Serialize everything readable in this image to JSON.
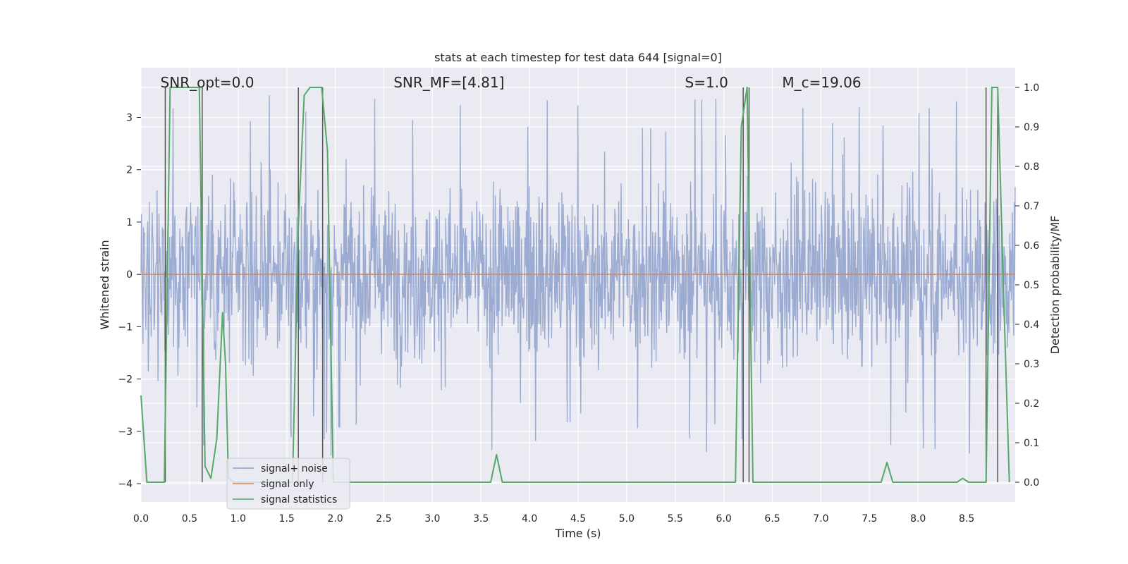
{
  "chart_data": {
    "type": "line",
    "title": "stats at each timestep for test data 644 [signal=0]",
    "xlabel": "Time (s)",
    "ylabel": "Whitened strain",
    "ylabel_right": "Detection probability/MF",
    "xlim": [
      0.0,
      9.0
    ],
    "ylim": [
      -4.35,
      3.95
    ],
    "ylim_right": [
      -0.05,
      1.05
    ],
    "x_ticks": [
      0.0,
      0.5,
      1.0,
      1.5,
      2.0,
      2.5,
      3.0,
      3.5,
      4.0,
      4.5,
      5.0,
      5.5,
      6.0,
      6.5,
      7.0,
      7.5,
      8.0,
      8.5
    ],
    "x_tick_labels": [
      "0.0",
      "0.5",
      "1.0",
      "1.5",
      "2.0",
      "2.5",
      "3.0",
      "3.5",
      "4.0",
      "4.5",
      "5.0",
      "5.5",
      "6.0",
      "6.5",
      "7.0",
      "7.5",
      "8.0",
      "8.5"
    ],
    "y_ticks": [
      -4,
      -3,
      -2,
      -1,
      0,
      1,
      2,
      3
    ],
    "y_tick_labels": [
      "−4",
      "−3",
      "−2",
      "−1",
      "0",
      "1",
      "2",
      "3"
    ],
    "y_right_ticks": [
      0.0,
      0.1,
      0.2,
      0.3,
      0.4,
      0.5,
      0.6,
      0.7,
      0.8,
      0.9,
      1.0
    ],
    "y_right_tick_labels": [
      "0.0",
      "0.1",
      "0.2",
      "0.3",
      "0.4",
      "0.5",
      "0.6",
      "0.7",
      "0.8",
      "0.9",
      "1.0"
    ],
    "annotations": [
      {
        "text": "SNR_opt=0.0",
        "x": 0.2
      },
      {
        "text": "SNR_MF=[4.81]",
        "x": 2.6
      },
      {
        "text": "S=1.0",
        "x": 5.6
      },
      {
        "text": "M_c=19.06",
        "x": 6.6
      }
    ],
    "legend": {
      "placement": "lower-left",
      "entries": [
        "signal+ noise",
        "signal only",
        "signal statistics"
      ]
    },
    "series": [
      {
        "name": "signal+ noise",
        "kind": "noise",
        "color": "#8da0cb",
        "sample_count": 1800,
        "typical_range": [
          -2.4,
          2.4
        ],
        "extremes": [
          -4.0,
          3.5
        ]
      },
      {
        "name": "signal only",
        "color": "#dd8452",
        "x": [
          0.0,
          9.0
        ],
        "y": [
          0.0,
          0.0
        ]
      },
      {
        "name": "signal statistics",
        "color": "#55a868",
        "axis": "right",
        "x": [
          0.0,
          0.06,
          0.12,
          0.18,
          0.24,
          0.3,
          0.36,
          0.42,
          0.48,
          0.54,
          0.6,
          0.66,
          0.72,
          0.78,
          0.84,
          0.87,
          0.9,
          0.96,
          1.02,
          1.08,
          1.14,
          1.2,
          1.26,
          1.32,
          1.38,
          1.44,
          1.5,
          1.56,
          1.62,
          1.68,
          1.74,
          1.8,
          1.86,
          1.92,
          1.98,
          2.04,
          2.1,
          2.5,
          3.0,
          3.5,
          3.6,
          3.66,
          3.72,
          3.78,
          3.84,
          4.5,
          5.0,
          5.5,
          6.0,
          6.06,
          6.12,
          6.18,
          6.24,
          6.3,
          6.36,
          6.42,
          7.0,
          7.5,
          7.62,
          7.68,
          7.74,
          7.8,
          7.86,
          8.4,
          8.46,
          8.52,
          8.58,
          8.64,
          8.7,
          8.76,
          8.82,
          8.88,
          8.94
        ],
        "y": [
          0.22,
          0.0,
          0.0,
          0.0,
          0.0,
          1.0,
          1.0,
          1.0,
          1.0,
          1.0,
          1.0,
          0.04,
          0.01,
          0.11,
          0.43,
          0.3,
          0.01,
          0.0,
          0.0,
          0.0,
          0.0,
          0.0,
          0.0,
          0.0,
          0.0,
          0.0,
          0.0,
          0.0,
          0.65,
          0.98,
          1.0,
          1.0,
          1.0,
          0.84,
          0.0,
          0.0,
          0.0,
          0.0,
          0.0,
          0.0,
          0.0,
          0.07,
          0.0,
          0.0,
          0.0,
          0.0,
          0.0,
          0.0,
          0.0,
          0.0,
          0.0,
          0.9,
          1.0,
          0.0,
          0.0,
          0.0,
          0.0,
          0.0,
          0.0,
          0.05,
          0.0,
          0.0,
          0.0,
          0.0,
          0.01,
          0.0,
          0.0,
          0.0,
          0.0,
          1.0,
          1.0,
          0.48,
          0.0
        ]
      }
    ],
    "vertical_markers_s": [
      0.25,
      0.63,
      1.62,
      1.87,
      6.2,
      6.26,
      8.7,
      8.82
    ]
  }
}
